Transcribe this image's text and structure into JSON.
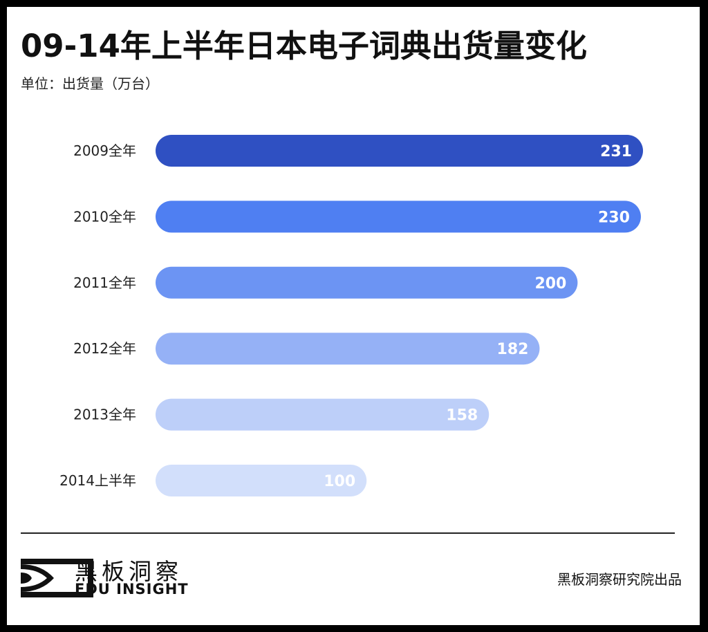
{
  "title": "09-14年上半年日本电子词典出货量变化",
  "unit_label": "单位：出货量（万台）",
  "brand": {
    "name_cn": "黑板洞察",
    "name_en": "EDU INSIGHT"
  },
  "credit": "黑板洞察研究院出品",
  "chart_data": {
    "type": "bar",
    "orientation": "horizontal",
    "title": "09-14年上半年日本电子词典出货量变化",
    "ylabel": "单位：出货量（万台）",
    "categories": [
      "2009全年",
      "2010全年",
      "2011全年",
      "2012全年",
      "2013全年",
      "2014上半年"
    ],
    "values": [
      231,
      230,
      200,
      182,
      158,
      100
    ],
    "colors": [
      "#2f50c2",
      "#4f7ff2",
      "#6c94f3",
      "#95b1f6",
      "#bdcff9",
      "#d2dffb"
    ],
    "xlim": [
      0,
      231
    ],
    "grid": false,
    "data_labels": true
  }
}
